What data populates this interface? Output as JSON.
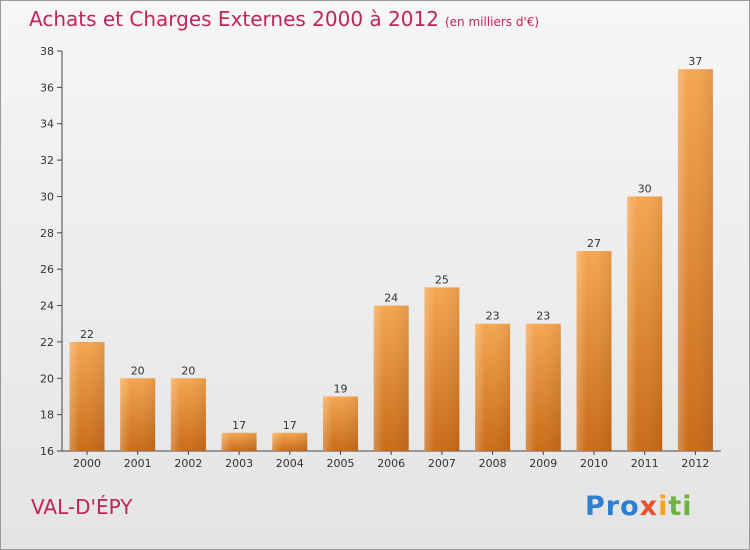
{
  "header": {
    "title": "Achats et Charges Externes 2000 à 2012",
    "unit": "(en milliers d'€)"
  },
  "footer": {
    "location": "VAL-D'ÉPY",
    "logo": [
      "Pro",
      "x",
      "i",
      "ti"
    ]
  },
  "colors": {
    "title": "#c0245f",
    "bar_light": "#f5a650",
    "bar_dark": "#c96b18"
  },
  "chart_data": {
    "type": "bar",
    "title": "Achats et Charges Externes 2000 à 2012",
    "subtitle": "(en milliers d'€)",
    "xlabel": "",
    "ylabel": "",
    "categories": [
      "2000",
      "2001",
      "2002",
      "2003",
      "2004",
      "2005",
      "2006",
      "2007",
      "2008",
      "2009",
      "2010",
      "2011",
      "2012"
    ],
    "values": [
      22,
      20,
      20,
      17,
      17,
      19,
      24,
      25,
      23,
      23,
      27,
      30,
      37
    ],
    "ylim": [
      16,
      38
    ],
    "yticks": [
      16,
      18,
      20,
      22,
      24,
      26,
      28,
      30,
      32,
      34,
      36,
      38
    ],
    "grid": false,
    "data_labels": true
  }
}
